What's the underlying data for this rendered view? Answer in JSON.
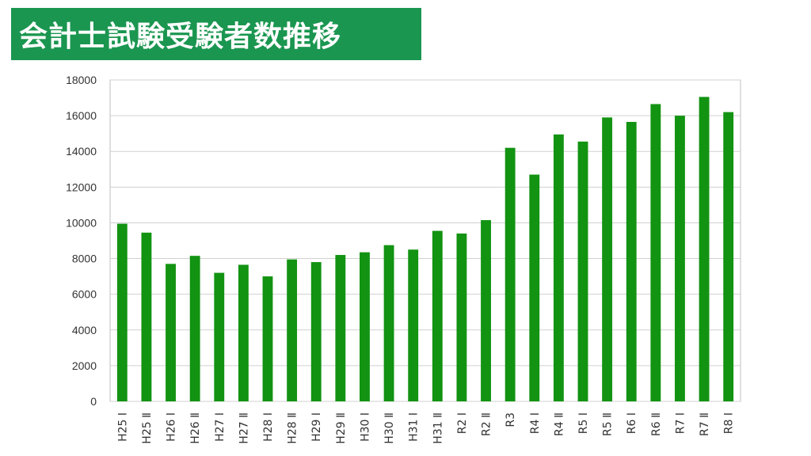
{
  "title": "会計士試験受験者数推移",
  "colors": {
    "banner": "#1a9650",
    "bar": "#129312",
    "grid": "#d0d0d0"
  },
  "chart_data": {
    "type": "bar",
    "title": "",
    "xlabel": "",
    "ylabel": "",
    "ylim": [
      0,
      18000
    ],
    "ytick_step": 2000,
    "grid": true,
    "legend": "none",
    "categories": [
      "H25 Ⅰ",
      "H25 Ⅱ",
      "H26 Ⅰ",
      "H26 Ⅱ",
      "H27 Ⅰ",
      "H27 Ⅱ",
      "H28 Ⅰ",
      "H28 Ⅱ",
      "H29 Ⅰ",
      "H29 Ⅱ",
      "H30 Ⅰ",
      "H30 Ⅱ",
      "H31 Ⅰ",
      "H31 Ⅱ",
      "R2 Ⅰ",
      "R2 Ⅱ",
      "R3",
      "R4 Ⅰ",
      "R4 Ⅱ",
      "R5 Ⅰ",
      "R5 Ⅱ",
      "R6 Ⅰ",
      "R6 Ⅱ",
      "R7 Ⅰ",
      "R7 Ⅱ",
      "R8 Ⅰ"
    ],
    "values": [
      9950,
      9450,
      7700,
      8150,
      7200,
      7650,
      7000,
      7950,
      7800,
      8200,
      8350,
      8750,
      8500,
      9550,
      9400,
      10150,
      14200,
      12700,
      14950,
      14550,
      15900,
      15650,
      16650,
      16000,
      17050,
      16200
    ]
  }
}
